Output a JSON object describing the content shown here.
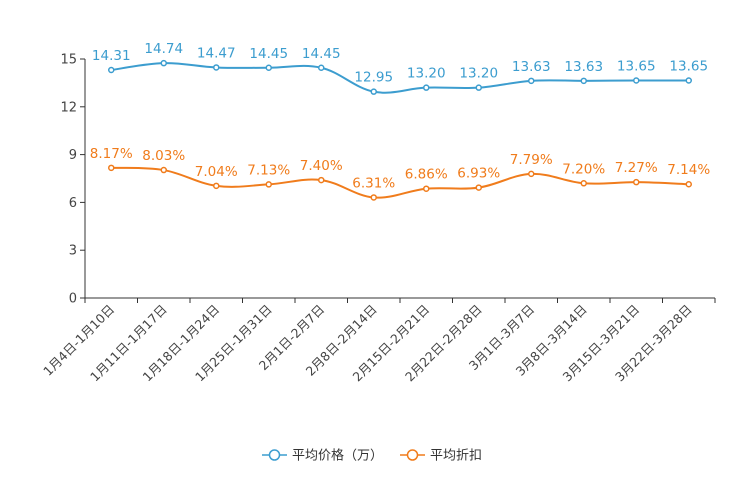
{
  "chart_data": {
    "type": "line",
    "categories": [
      "1月4日-1月10日",
      "1月11日-1月17日",
      "1月18日-1月24日",
      "1月25日-1月31日",
      "2月1日-2月7日",
      "2月8日-2月14日",
      "2月15日-2月21日",
      "2月22日-2月28日",
      "3月1日-3月7日",
      "3月8日-3月14日",
      "3月15日-3月21日",
      "3月22日-3月28日"
    ],
    "ylim": [
      0,
      15
    ],
    "yticks": [
      0,
      3,
      6,
      9,
      12,
      15
    ],
    "series": [
      {
        "name": "平均价格（万）",
        "color": "#3c9dcf",
        "values": [
          14.31,
          14.74,
          14.47,
          14.45,
          14.45,
          12.95,
          13.2,
          13.2,
          13.63,
          13.63,
          13.65,
          13.65
        ],
        "labels": [
          "14.31",
          "14.74",
          "14.47",
          "14.45",
          "14.45",
          "12.95",
          "13.20",
          "13.20",
          "13.63",
          "13.63",
          "13.65",
          "13.65"
        ]
      },
      {
        "name": "平均折扣",
        "color": "#f07c1c",
        "values": [
          8.17,
          8.03,
          7.04,
          7.13,
          7.4,
          6.31,
          6.86,
          6.93,
          7.79,
          7.2,
          7.27,
          7.14
        ],
        "labels": [
          "8.17%",
          "8.03%",
          "7.04%",
          "7.13%",
          "7.40%",
          "6.31%",
          "6.86%",
          "6.93%",
          "7.79%",
          "7.20%",
          "7.27%",
          "7.14%"
        ]
      }
    ]
  }
}
